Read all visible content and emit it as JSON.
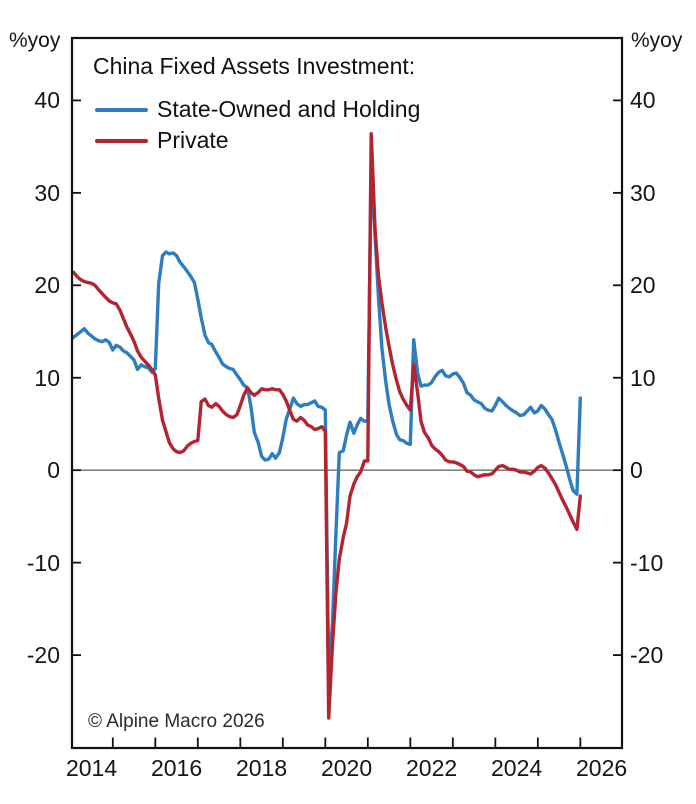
{
  "page": {
    "background": "#ffffff",
    "text_color": "#151515"
  },
  "header": {
    "unit_left": "%yoy",
    "unit_right": "%yoy"
  },
  "chart_data": {
    "type": "line",
    "title": "China Fixed Assets Investment:",
    "ylabel": "%yoy",
    "copyright": "© Alpine Macro 2026",
    "legend_position": "top-left-inside",
    "grid": "off",
    "zero_line": true,
    "zero_line_color": "#6e6e6e",
    "axis_color": "#111111",
    "x_range": [
      2014.04,
      2026.98
    ],
    "y_range": [
      -30.05,
      46.75
    ],
    "y_ticks": [
      40,
      30,
      20,
      10,
      0,
      -10,
      -20
    ],
    "x_minor_ticks": [
      2015,
      2016,
      2017,
      2018,
      2019,
      2020,
      2021,
      2022,
      2023,
      2024,
      2025,
      2026
    ],
    "x_labels": [
      2014,
      2016,
      2018,
      2020,
      2022,
      2024,
      2026
    ],
    "series": [
      {
        "name": "State-Owned and Holding",
        "color": "#2e7dbe",
        "points": [
          [
            2014.0,
            14.1
          ],
          [
            2014.08,
            14.4
          ],
          [
            2014.17,
            14.7
          ],
          [
            2014.25,
            15.0
          ],
          [
            2014.33,
            15.3
          ],
          [
            2014.42,
            14.8
          ],
          [
            2014.5,
            14.5
          ],
          [
            2014.58,
            14.2
          ],
          [
            2014.67,
            14.0
          ],
          [
            2014.75,
            13.9
          ],
          [
            2014.83,
            14.1
          ],
          [
            2014.92,
            13.8
          ],
          [
            2015.0,
            13.0
          ],
          [
            2015.08,
            13.5
          ],
          [
            2015.17,
            13.3
          ],
          [
            2015.25,
            12.9
          ],
          [
            2015.33,
            12.7
          ],
          [
            2015.42,
            12.3
          ],
          [
            2015.5,
            11.9
          ],
          [
            2015.58,
            10.9
          ],
          [
            2015.67,
            11.4
          ],
          [
            2015.75,
            11.2
          ],
          [
            2015.83,
            11.1
          ],
          [
            2015.92,
            10.6
          ],
          [
            2016.0,
            11.0
          ],
          [
            2016.08,
            20.2
          ],
          [
            2016.17,
            23.2
          ],
          [
            2016.25,
            23.6
          ],
          [
            2016.33,
            23.4
          ],
          [
            2016.42,
            23.5
          ],
          [
            2016.5,
            23.2
          ],
          [
            2016.58,
            22.5
          ],
          [
            2016.67,
            22.0
          ],
          [
            2016.75,
            21.5
          ],
          [
            2016.83,
            21.0
          ],
          [
            2016.92,
            20.3
          ],
          [
            2017.0,
            18.5
          ],
          [
            2017.08,
            16.5
          ],
          [
            2017.17,
            14.6
          ],
          [
            2017.25,
            13.8
          ],
          [
            2017.33,
            13.6
          ],
          [
            2017.42,
            12.8
          ],
          [
            2017.5,
            12.2
          ],
          [
            2017.58,
            11.5
          ],
          [
            2017.67,
            11.2
          ],
          [
            2017.75,
            11.0
          ],
          [
            2017.83,
            10.9
          ],
          [
            2017.92,
            10.3
          ],
          [
            2018.0,
            9.8
          ],
          [
            2018.08,
            9.2
          ],
          [
            2018.17,
            8.9
          ],
          [
            2018.25,
            6.9
          ],
          [
            2018.33,
            4.1
          ],
          [
            2018.42,
            3.0
          ],
          [
            2018.5,
            1.5
          ],
          [
            2018.58,
            1.1
          ],
          [
            2018.67,
            1.2
          ],
          [
            2018.75,
            1.8
          ],
          [
            2018.83,
            1.3
          ],
          [
            2018.92,
            1.9
          ],
          [
            2019.0,
            3.5
          ],
          [
            2019.08,
            5.5
          ],
          [
            2019.17,
            6.7
          ],
          [
            2019.25,
            7.8
          ],
          [
            2019.33,
            7.2
          ],
          [
            2019.42,
            6.9
          ],
          [
            2019.5,
            7.1
          ],
          [
            2019.58,
            7.1
          ],
          [
            2019.67,
            7.3
          ],
          [
            2019.75,
            7.5
          ],
          [
            2019.83,
            6.9
          ],
          [
            2019.92,
            6.8
          ],
          [
            2020.0,
            6.5
          ],
          [
            2020.08,
            -22.3
          ],
          [
            2020.17,
            -16.5
          ],
          [
            2020.25,
            -6.9
          ],
          [
            2020.33,
            1.9
          ],
          [
            2020.42,
            2.1
          ],
          [
            2020.5,
            3.8
          ],
          [
            2020.58,
            5.2
          ],
          [
            2020.67,
            4.0
          ],
          [
            2020.75,
            4.9
          ],
          [
            2020.83,
            5.6
          ],
          [
            2020.92,
            5.3
          ],
          [
            2021.0,
            5.3
          ],
          [
            2021.08,
            32.9
          ],
          [
            2021.17,
            25.3
          ],
          [
            2021.25,
            18.6
          ],
          [
            2021.33,
            13.2
          ],
          [
            2021.42,
            9.6
          ],
          [
            2021.5,
            7.1
          ],
          [
            2021.58,
            5.4
          ],
          [
            2021.67,
            3.9
          ],
          [
            2021.75,
            3.3
          ],
          [
            2021.83,
            3.2
          ],
          [
            2021.92,
            2.9
          ],
          [
            2022.0,
            2.8
          ],
          [
            2022.08,
            14.1
          ],
          [
            2022.17,
            10.5
          ],
          [
            2022.25,
            9.1
          ],
          [
            2022.33,
            9.2
          ],
          [
            2022.42,
            9.2
          ],
          [
            2022.5,
            9.5
          ],
          [
            2022.58,
            10.1
          ],
          [
            2022.67,
            10.6
          ],
          [
            2022.75,
            10.8
          ],
          [
            2022.83,
            10.2
          ],
          [
            2022.92,
            10.1
          ],
          [
            2023.0,
            10.4
          ],
          [
            2023.08,
            10.5
          ],
          [
            2023.17,
            10.0
          ],
          [
            2023.25,
            9.4
          ],
          [
            2023.33,
            8.4
          ],
          [
            2023.42,
            8.1
          ],
          [
            2023.5,
            7.6
          ],
          [
            2023.58,
            7.4
          ],
          [
            2023.67,
            7.2
          ],
          [
            2023.75,
            6.7
          ],
          [
            2023.83,
            6.5
          ],
          [
            2023.92,
            6.4
          ],
          [
            2024.0,
            7.0
          ],
          [
            2024.08,
            7.8
          ],
          [
            2024.17,
            7.4
          ],
          [
            2024.25,
            7.0
          ],
          [
            2024.33,
            6.7
          ],
          [
            2024.42,
            6.4
          ],
          [
            2024.5,
            6.2
          ],
          [
            2024.58,
            5.9
          ],
          [
            2024.67,
            6.0
          ],
          [
            2024.75,
            6.4
          ],
          [
            2024.83,
            6.8
          ],
          [
            2024.92,
            6.2
          ],
          [
            2025.0,
            6.4
          ],
          [
            2025.08,
            7.0
          ],
          [
            2025.17,
            6.6
          ],
          [
            2025.25,
            6.0
          ],
          [
            2025.33,
            5.5
          ],
          [
            2025.42,
            4.3
          ],
          [
            2025.5,
            3.0
          ],
          [
            2025.58,
            1.8
          ],
          [
            2025.67,
            0.4
          ],
          [
            2025.75,
            -1.0
          ],
          [
            2025.83,
            -2.2
          ],
          [
            2025.92,
            -2.6
          ],
          [
            2026.0,
            7.8
          ]
        ]
      },
      {
        "name": "Private",
        "color": "#b22431",
        "points": [
          [
            2014.0,
            21.3
          ],
          [
            2014.08,
            21.4
          ],
          [
            2014.17,
            20.9
          ],
          [
            2014.25,
            20.6
          ],
          [
            2014.33,
            20.4
          ],
          [
            2014.42,
            20.3
          ],
          [
            2014.5,
            20.2
          ],
          [
            2014.58,
            20.0
          ],
          [
            2014.67,
            19.5
          ],
          [
            2014.75,
            19.1
          ],
          [
            2014.83,
            18.7
          ],
          [
            2014.92,
            18.3
          ],
          [
            2015.0,
            18.1
          ],
          [
            2015.08,
            18.0
          ],
          [
            2015.17,
            17.3
          ],
          [
            2015.25,
            16.4
          ],
          [
            2015.33,
            15.5
          ],
          [
            2015.42,
            14.7
          ],
          [
            2015.5,
            13.9
          ],
          [
            2015.58,
            12.9
          ],
          [
            2015.67,
            12.2
          ],
          [
            2015.75,
            11.8
          ],
          [
            2015.83,
            11.4
          ],
          [
            2015.92,
            10.9
          ],
          [
            2016.0,
            10.3
          ],
          [
            2016.08,
            7.8
          ],
          [
            2016.17,
            5.4
          ],
          [
            2016.25,
            4.2
          ],
          [
            2016.33,
            3.0
          ],
          [
            2016.42,
            2.3
          ],
          [
            2016.5,
            2.0
          ],
          [
            2016.58,
            1.9
          ],
          [
            2016.67,
            2.1
          ],
          [
            2016.75,
            2.6
          ],
          [
            2016.83,
            2.9
          ],
          [
            2016.92,
            3.1
          ],
          [
            2017.0,
            3.2
          ],
          [
            2017.08,
            7.4
          ],
          [
            2017.17,
            7.7
          ],
          [
            2017.25,
            7.0
          ],
          [
            2017.33,
            6.8
          ],
          [
            2017.42,
            7.2
          ],
          [
            2017.5,
            6.9
          ],
          [
            2017.58,
            6.4
          ],
          [
            2017.67,
            6.0
          ],
          [
            2017.75,
            5.8
          ],
          [
            2017.83,
            5.7
          ],
          [
            2017.92,
            6.0
          ],
          [
            2018.0,
            7.0
          ],
          [
            2018.08,
            8.1
          ],
          [
            2018.17,
            8.9
          ],
          [
            2018.25,
            8.4
          ],
          [
            2018.33,
            8.1
          ],
          [
            2018.42,
            8.4
          ],
          [
            2018.5,
            8.8
          ],
          [
            2018.58,
            8.7
          ],
          [
            2018.67,
            8.7
          ],
          [
            2018.75,
            8.8
          ],
          [
            2018.83,
            8.7
          ],
          [
            2018.92,
            8.7
          ],
          [
            2019.0,
            8.2
          ],
          [
            2019.08,
            7.5
          ],
          [
            2019.17,
            6.4
          ],
          [
            2019.25,
            5.5
          ],
          [
            2019.33,
            5.3
          ],
          [
            2019.42,
            5.7
          ],
          [
            2019.5,
            5.4
          ],
          [
            2019.58,
            4.9
          ],
          [
            2019.67,
            4.7
          ],
          [
            2019.75,
            4.4
          ],
          [
            2019.83,
            4.5
          ],
          [
            2019.92,
            4.7
          ],
          [
            2020.0,
            4.2
          ],
          [
            2020.08,
            -26.8
          ],
          [
            2020.17,
            -18.8
          ],
          [
            2020.25,
            -13.3
          ],
          [
            2020.33,
            -9.6
          ],
          [
            2020.42,
            -7.3
          ],
          [
            2020.5,
            -5.7
          ],
          [
            2020.58,
            -2.8
          ],
          [
            2020.67,
            -1.5
          ],
          [
            2020.75,
            -0.7
          ],
          [
            2020.83,
            -0.2
          ],
          [
            2020.92,
            1.0
          ],
          [
            2021.0,
            1.0
          ],
          [
            2021.08,
            36.4
          ],
          [
            2021.17,
            26.0
          ],
          [
            2021.25,
            21.0
          ],
          [
            2021.33,
            18.1
          ],
          [
            2021.42,
            15.4
          ],
          [
            2021.5,
            13.4
          ],
          [
            2021.58,
            11.5
          ],
          [
            2021.67,
            9.8
          ],
          [
            2021.75,
            8.5
          ],
          [
            2021.83,
            7.7
          ],
          [
            2021.92,
            7.0
          ],
          [
            2022.0,
            6.5
          ],
          [
            2022.08,
            11.4
          ],
          [
            2022.17,
            8.4
          ],
          [
            2022.25,
            5.3
          ],
          [
            2022.33,
            4.1
          ],
          [
            2022.42,
            3.5
          ],
          [
            2022.5,
            2.7
          ],
          [
            2022.58,
            2.3
          ],
          [
            2022.67,
            2.0
          ],
          [
            2022.75,
            1.6
          ],
          [
            2022.83,
            1.1
          ],
          [
            2022.92,
            0.9
          ],
          [
            2023.0,
            0.9
          ],
          [
            2023.08,
            0.8
          ],
          [
            2023.17,
            0.6
          ],
          [
            2023.25,
            0.4
          ],
          [
            2023.33,
            -0.1
          ],
          [
            2023.42,
            -0.2
          ],
          [
            2023.5,
            -0.5
          ],
          [
            2023.58,
            -0.7
          ],
          [
            2023.67,
            -0.6
          ],
          [
            2023.75,
            -0.5
          ],
          [
            2023.83,
            -0.5
          ],
          [
            2023.92,
            -0.4
          ],
          [
            2024.0,
            0.0
          ],
          [
            2024.08,
            0.4
          ],
          [
            2024.17,
            0.5
          ],
          [
            2024.25,
            0.3
          ],
          [
            2024.33,
            0.1
          ],
          [
            2024.42,
            0.1
          ],
          [
            2024.5,
            0.0
          ],
          [
            2024.58,
            -0.2
          ],
          [
            2024.67,
            -0.2
          ],
          [
            2024.75,
            -0.3
          ],
          [
            2024.83,
            -0.4
          ],
          [
            2024.92,
            -0.1
          ],
          [
            2025.0,
            0.3
          ],
          [
            2025.08,
            0.5
          ],
          [
            2025.17,
            0.2
          ],
          [
            2025.25,
            -0.3
          ],
          [
            2025.33,
            -0.9
          ],
          [
            2025.42,
            -1.6
          ],
          [
            2025.5,
            -2.4
          ],
          [
            2025.58,
            -3.2
          ],
          [
            2025.67,
            -4.0
          ],
          [
            2025.75,
            -4.8
          ],
          [
            2025.83,
            -5.6
          ],
          [
            2025.92,
            -6.4
          ],
          [
            2026.0,
            -2.8
          ]
        ]
      }
    ]
  }
}
